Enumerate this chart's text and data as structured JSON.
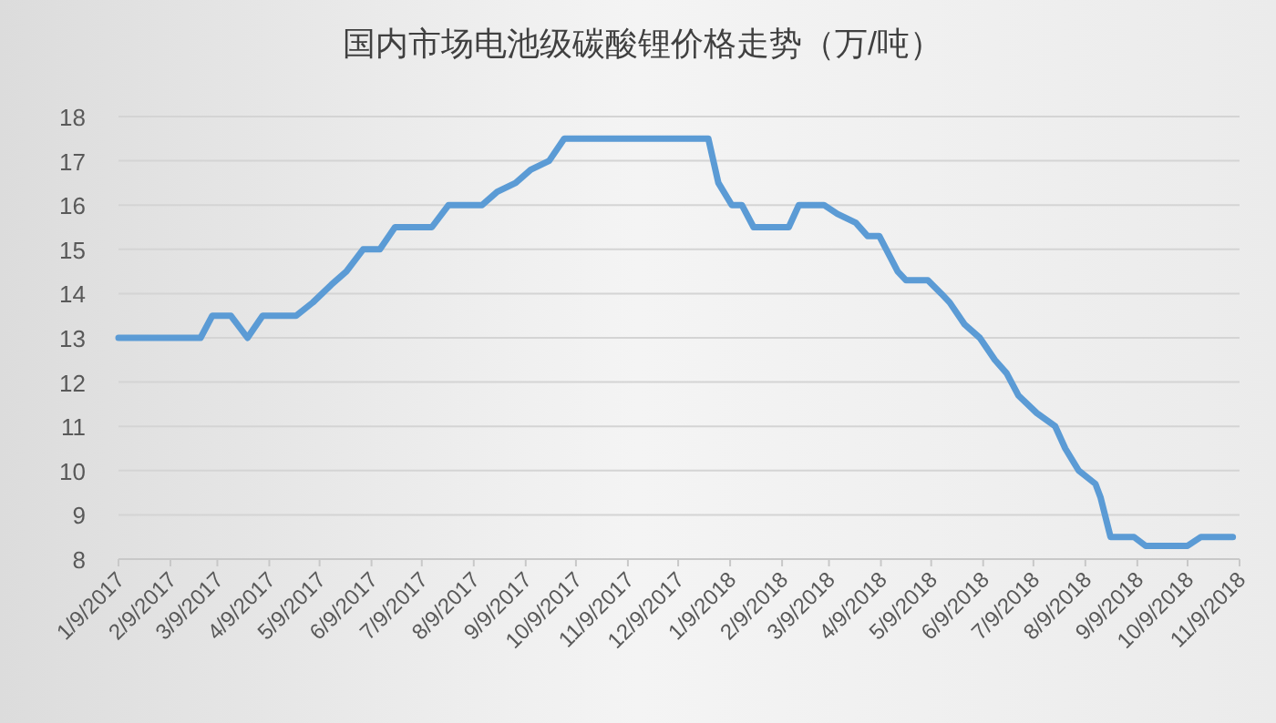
{
  "chart_data": {
    "type": "line",
    "title": "国内市场电池级碳酸锂价格走势（万/吨）",
    "x": [
      "2017-01-09",
      "2017-02-27",
      "2017-03-06",
      "2017-03-17",
      "2017-03-27",
      "2017-04-05",
      "2017-04-25",
      "2017-05-05",
      "2017-05-16",
      "2017-05-25",
      "2017-06-04",
      "2017-06-14",
      "2017-06-23",
      "2017-07-15",
      "2017-07-25",
      "2017-08-14",
      "2017-08-23",
      "2017-09-03",
      "2017-09-12",
      "2017-09-23",
      "2017-10-02",
      "2017-12-27",
      "2018-01-02",
      "2018-01-10",
      "2018-01-16",
      "2018-01-23",
      "2018-02-13",
      "2018-02-19",
      "2018-03-06",
      "2018-03-14",
      "2018-03-25",
      "2018-04-01",
      "2018-04-08",
      "2018-04-19",
      "2018-04-24",
      "2018-05-07",
      "2018-05-15",
      "2018-05-20",
      "2018-05-29",
      "2018-06-07",
      "2018-06-16",
      "2018-06-23",
      "2018-06-30",
      "2018-07-11",
      "2018-07-22",
      "2018-07-28",
      "2018-08-05",
      "2018-08-15",
      "2018-08-18",
      "2018-08-24",
      "2018-09-07",
      "2018-09-14",
      "2018-10-09",
      "2018-10-17",
      "2018-11-05"
    ],
    "series": [
      {
        "color": "#5b9bd5",
        "values": [
          13,
          13,
          13.5,
          13.5,
          13,
          13.5,
          13.5,
          13.8,
          14.2,
          14.5,
          15,
          15,
          15.5,
          15.5,
          16,
          16,
          16.3,
          16.5,
          16.8,
          17,
          17.5,
          17.5,
          16.5,
          16,
          16,
          15.5,
          15.5,
          16,
          16,
          15.8,
          15.6,
          15.3,
          15.3,
          14.5,
          14.3,
          14.3,
          14,
          13.8,
          13.3,
          13,
          12.5,
          12.2,
          11.7,
          11.3,
          11,
          10.5,
          10,
          9.7,
          9.4,
          8.5,
          8.5,
          8.3,
          8.3,
          8.5,
          8.5
        ]
      }
    ],
    "xlim": [
      "2017-01-09",
      "2018-11-09"
    ],
    "xticks": [
      {
        "value": "2017-01-09",
        "label": "1/9/2017"
      },
      {
        "value": "2017-02-09",
        "label": "2/9/2017"
      },
      {
        "value": "2017-03-09",
        "label": "3/9/2017"
      },
      {
        "value": "2017-04-09",
        "label": "4/9/2017"
      },
      {
        "value": "2017-05-09",
        "label": "5/9/2017"
      },
      {
        "value": "2017-06-09",
        "label": "6/9/2017"
      },
      {
        "value": "2017-07-09",
        "label": "7/9/2017"
      },
      {
        "value": "2017-08-09",
        "label": "8/9/2017"
      },
      {
        "value": "2017-09-09",
        "label": "9/9/2017"
      },
      {
        "value": "2017-10-09",
        "label": "10/9/2017"
      },
      {
        "value": "2017-11-09",
        "label": "11/9/2017"
      },
      {
        "value": "2017-12-09",
        "label": "12/9/2017"
      },
      {
        "value": "2018-01-09",
        "label": "1/9/2018"
      },
      {
        "value": "2018-02-09",
        "label": "2/9/2018"
      },
      {
        "value": "2018-03-09",
        "label": "3/9/2018"
      },
      {
        "value": "2018-04-09",
        "label": "4/9/2018"
      },
      {
        "value": "2018-05-09",
        "label": "5/9/2018"
      },
      {
        "value": "2018-06-09",
        "label": "6/9/2018"
      },
      {
        "value": "2018-07-09",
        "label": "7/9/2018"
      },
      {
        "value": "2018-08-09",
        "label": "8/9/2018"
      },
      {
        "value": "2018-09-09",
        "label": "9/9/2018"
      },
      {
        "value": "2018-10-09",
        "label": "10/9/2018"
      },
      {
        "value": "2018-11-09",
        "label": "11/9/2018"
      }
    ],
    "ylim": [
      8,
      18
    ],
    "yticks": [
      8,
      9,
      10,
      11,
      12,
      13,
      14,
      15,
      16,
      17,
      18
    ],
    "grid": "y",
    "marker": "none",
    "line_style": "solid"
  }
}
